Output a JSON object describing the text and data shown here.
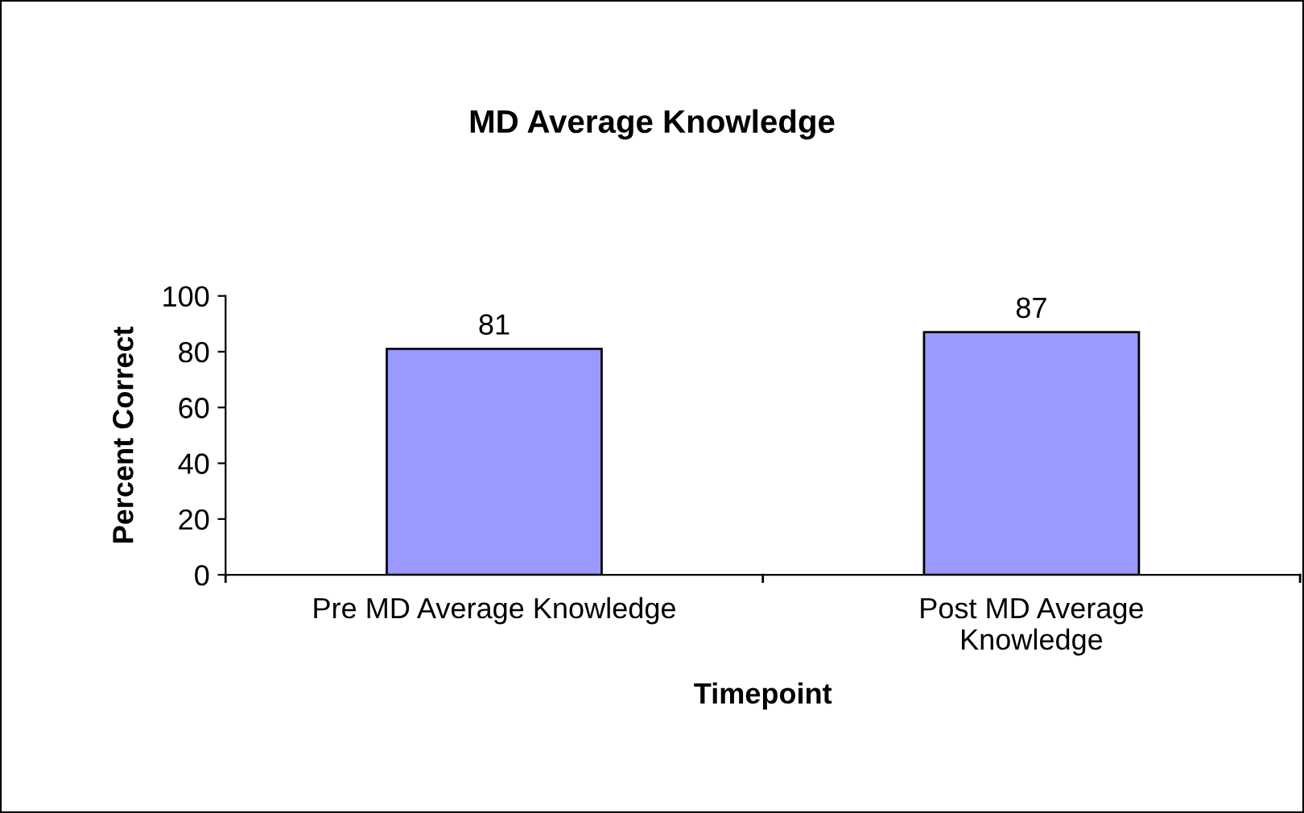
{
  "chart_data": {
    "type": "bar",
    "title": "MD Average Knowledge",
    "categories": [
      "Pre MD Average Knowledge",
      "Post MD Average\nKnowledge"
    ],
    "values": [
      81,
      87
    ],
    "color": "#9999ff",
    "xlabel": "Timepoint",
    "ylabel": "Percent Correct",
    "ylim": [
      0,
      100
    ],
    "yticks": [
      0,
      20,
      40,
      60,
      80,
      100
    ],
    "data_labels": true,
    "grid": false,
    "legend": false
  }
}
